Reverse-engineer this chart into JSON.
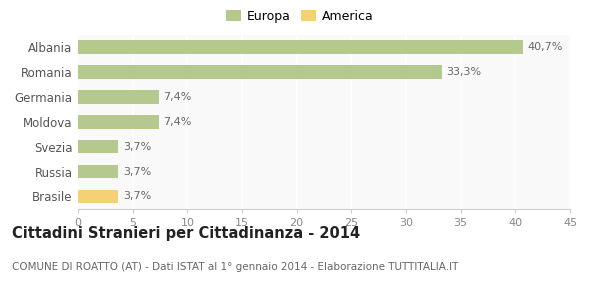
{
  "categories": [
    "Albania",
    "Romania",
    "Germania",
    "Moldova",
    "Svezia",
    "Russia",
    "Brasile"
  ],
  "values": [
    40.7,
    33.3,
    7.4,
    7.4,
    3.7,
    3.7,
    3.7
  ],
  "labels": [
    "40,7%",
    "33,3%",
    "7,4%",
    "7,4%",
    "3,7%",
    "3,7%",
    "3,7%"
  ],
  "colors": [
    "#b5c98e",
    "#b5c98e",
    "#b5c98e",
    "#b5c98e",
    "#b5c98e",
    "#b5c98e",
    "#f5d176"
  ],
  "legend": [
    {
      "label": "Europa",
      "color": "#b5c98e"
    },
    {
      "label": "America",
      "color": "#f5d176"
    }
  ],
  "xlim": [
    0,
    45
  ],
  "xticks": [
    0,
    5,
    10,
    15,
    20,
    25,
    30,
    35,
    40,
    45
  ],
  "title": "Cittadini Stranieri per Cittadinanza - 2014",
  "subtitle": "COMUNE DI ROATTO (AT) - Dati ISTAT al 1° gennaio 2014 - Elaborazione TUTTITALIA.IT",
  "bg_color": "#f9f9f9",
  "fig_bg_color": "#ffffff",
  "grid_color": "#ffffff",
  "label_fontsize": 8,
  "ytick_fontsize": 8.5,
  "xtick_fontsize": 8,
  "title_fontsize": 10.5,
  "subtitle_fontsize": 7.5,
  "bar_height": 0.55
}
